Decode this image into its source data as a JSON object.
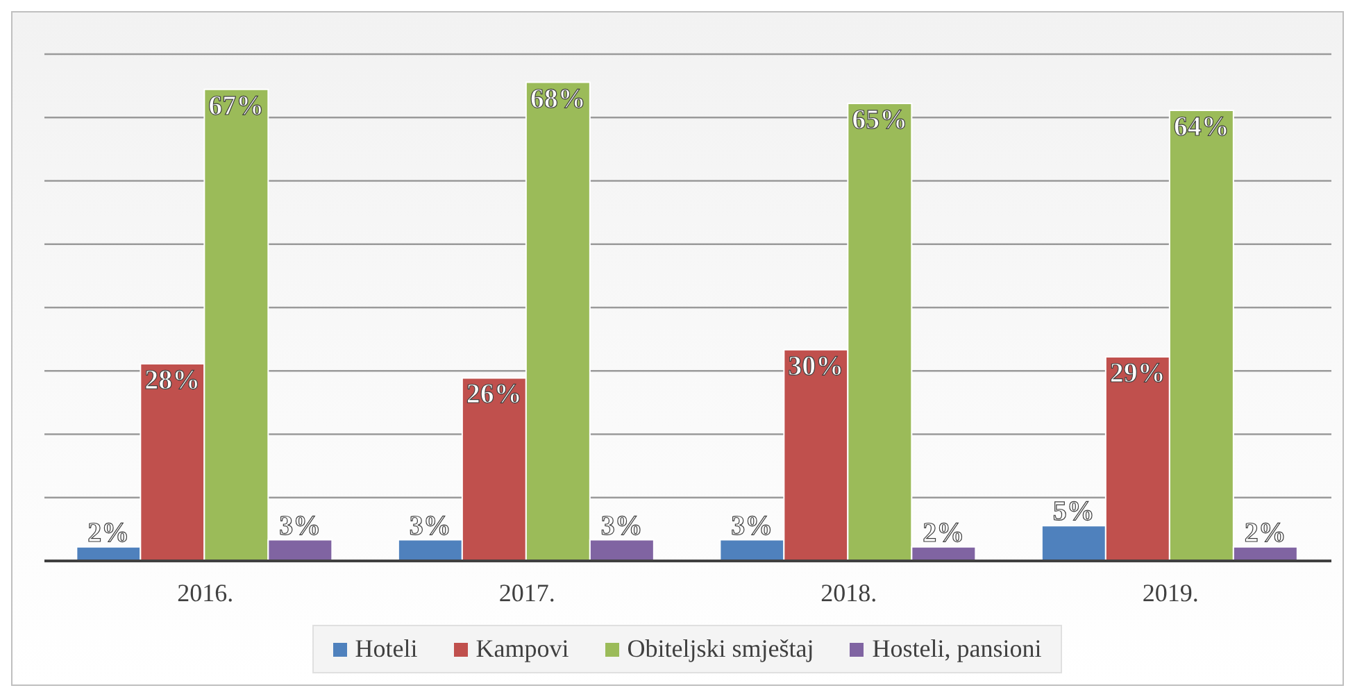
{
  "chart_data": {
    "type": "bar",
    "categories": [
      "2016.",
      "2017.",
      "2018.",
      "2019."
    ],
    "series": [
      {
        "name": "Hoteli",
        "color": "#4f81bd",
        "values": [
          2,
          3,
          3,
          5
        ],
        "value_labels": [
          "2%",
          "3%",
          "3%",
          "5%"
        ]
      },
      {
        "name": "Kampovi",
        "color": "#c0504d",
        "values": [
          28,
          26,
          30,
          29
        ],
        "value_labels": [
          "28%",
          "26%",
          "30%",
          "29%"
        ]
      },
      {
        "name": "Obiteljski smještaj",
        "color": "#9bbb59",
        "values": [
          67,
          68,
          65,
          64
        ],
        "value_labels": [
          "67%",
          "68%",
          "65%",
          "64%"
        ]
      },
      {
        "name": "Hosteli, pansioni",
        "color": "#8064a2",
        "values": [
          3,
          3,
          2,
          2
        ],
        "value_labels": [
          "3%",
          "3%",
          "2%",
          "2%"
        ]
      }
    ],
    "tick_labels": "x",
    "grid": "y",
    "legend": "bottom"
  }
}
